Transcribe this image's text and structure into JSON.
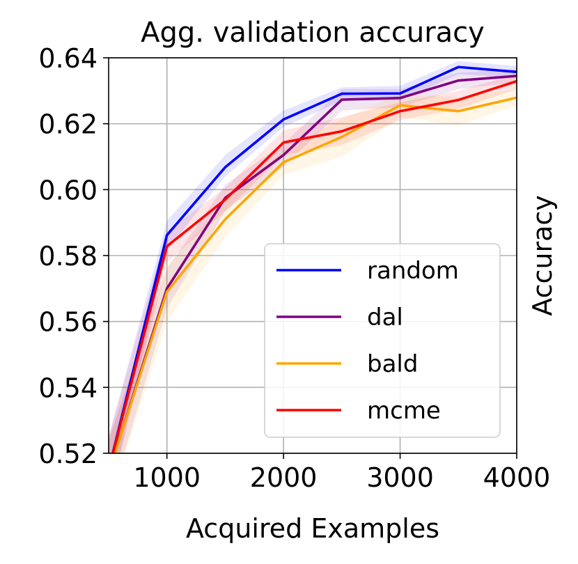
{
  "chart_data": {
    "type": "line",
    "title": "Agg. validation accuracy",
    "xlabel": "Acquired Examples",
    "ylabel": "Accuracy",
    "x": [
      500,
      1000,
      1500,
      2000,
      2500,
      3000,
      3500,
      4000
    ],
    "xlim": [
      500,
      4000
    ],
    "ylim": [
      0.52,
      0.64
    ],
    "xticks": [
      1000,
      2000,
      3000,
      4000
    ],
    "xtick_labels": [
      "1000",
      "2000",
      "3000",
      "4000"
    ],
    "yticks": [
      0.52,
      0.54,
      0.56,
      0.58,
      0.6,
      0.62,
      0.64
    ],
    "ytick_labels": [
      "0.52",
      "0.54",
      "0.56",
      "0.58",
      "0.60",
      "0.62",
      "0.64"
    ],
    "grid": true,
    "legend_position": "lower-right",
    "series": [
      {
        "name": "random",
        "color": "#0000ff",
        "values": [
          0.515,
          0.5862,
          0.6068,
          0.6213,
          0.6291,
          0.6292,
          0.6372,
          0.6357
        ],
        "lower": [
          0.505,
          0.5815,
          0.604,
          0.619,
          0.627,
          0.627,
          0.635,
          0.634
        ],
        "upper": [
          0.525,
          0.5905,
          0.6105,
          0.624,
          0.631,
          0.6315,
          0.639,
          0.6375
        ]
      },
      {
        "name": "dal",
        "color": "#800080",
        "values": [
          0.514,
          0.57,
          0.5975,
          0.6105,
          0.6273,
          0.6278,
          0.6331,
          0.6345
        ],
        "lower": [
          0.504,
          0.564,
          0.5935,
          0.607,
          0.624,
          0.625,
          0.6305,
          0.6325
        ],
        "upper": [
          0.524,
          0.576,
          0.6015,
          0.614,
          0.6305,
          0.6305,
          0.6355,
          0.6365
        ]
      },
      {
        "name": "bald",
        "color": "#ffa500",
        "values": [
          0.514,
          0.569,
          0.591,
          0.6083,
          0.616,
          0.6256,
          0.6238,
          0.6279
        ],
        "lower": [
          0.504,
          0.56,
          0.5855,
          0.6045,
          0.61,
          0.622,
          0.6195,
          0.6255
        ],
        "upper": [
          0.524,
          0.577,
          0.5965,
          0.612,
          0.6215,
          0.629,
          0.628,
          0.6305
        ]
      },
      {
        "name": "mcme",
        "color": "#ff0000",
        "values": [
          0.515,
          0.5828,
          0.597,
          0.6143,
          0.6177,
          0.6238,
          0.6272,
          0.6329
        ],
        "lower": [
          0.505,
          0.578,
          0.5935,
          0.6105,
          0.6135,
          0.621,
          0.6245,
          0.6305
        ],
        "upper": [
          0.525,
          0.5875,
          0.6005,
          0.618,
          0.622,
          0.6265,
          0.63,
          0.635
        ]
      }
    ]
  }
}
